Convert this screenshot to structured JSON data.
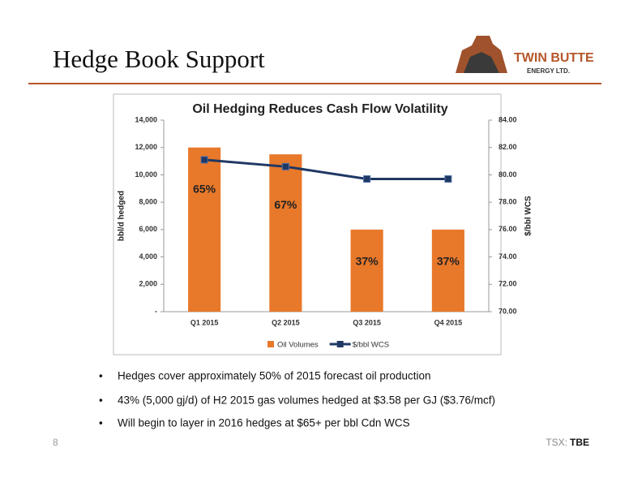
{
  "slide": {
    "title": "Hedge Book Support",
    "logo": {
      "name": "TWIN BUTTE",
      "subname": "ENERGY LTD."
    },
    "bullets": [
      "Hedges  cover approximately 50% of 2015  forecast oil production",
      "43% (5,000 gj/d) of H2 2015 gas volumes hedged at $3.58 per GJ ($3.76/mcf)",
      "Will begin to layer in 2016 hedges at $65+ per bbl Cdn WCS"
    ],
    "page_number": "8",
    "exchange": "TSX:",
    "ticker": "TBE"
  },
  "chart_data": {
    "type": "bar_line",
    "title": "Oil Hedging Reduces Cash Flow Volatility",
    "ylabel": "bbl/d hedged",
    "y2label": "$/bbl WCS",
    "categories": [
      "Q1 2015",
      "Q2 2015",
      "Q3 2015",
      "Q4 2015"
    ],
    "series": [
      {
        "name": "Oil Volumes",
        "type": "bar",
        "color": "#e8782a",
        "values": [
          12000,
          11500,
          6000,
          6000
        ]
      },
      {
        "name": "$/bbl WCS",
        "type": "line",
        "axis": "y2",
        "color": "#1f3864",
        "values": [
          81.1,
          80.6,
          79.7,
          79.7
        ]
      }
    ],
    "annotations": [
      "65%",
      "67%",
      "37%",
      "37%"
    ],
    "ylim": [
      0,
      14000
    ],
    "yticks": [
      {
        "value": 0,
        "label": "-"
      },
      {
        "value": 2000,
        "label": "2,000"
      },
      {
        "value": 4000,
        "label": "4,000"
      },
      {
        "value": 6000,
        "label": "6,000"
      },
      {
        "value": 8000,
        "label": "8,000"
      },
      {
        "value": 10000,
        "label": "10,000"
      },
      {
        "value": 12000,
        "label": "12,000"
      },
      {
        "value": 14000,
        "label": "14,000"
      }
    ],
    "y2lim": [
      70,
      84
    ],
    "y2ticks": [
      {
        "value": 70,
        "label": "70.00"
      },
      {
        "value": 72,
        "label": "72.00"
      },
      {
        "value": 74,
        "label": "74.00"
      },
      {
        "value": 76,
        "label": "76.00"
      },
      {
        "value": 78,
        "label": "78.00"
      },
      {
        "value": 80,
        "label": "80.00"
      },
      {
        "value": 82,
        "label": "82.00"
      },
      {
        "value": 84,
        "label": "84.00"
      }
    ],
    "legend": "bottom"
  }
}
